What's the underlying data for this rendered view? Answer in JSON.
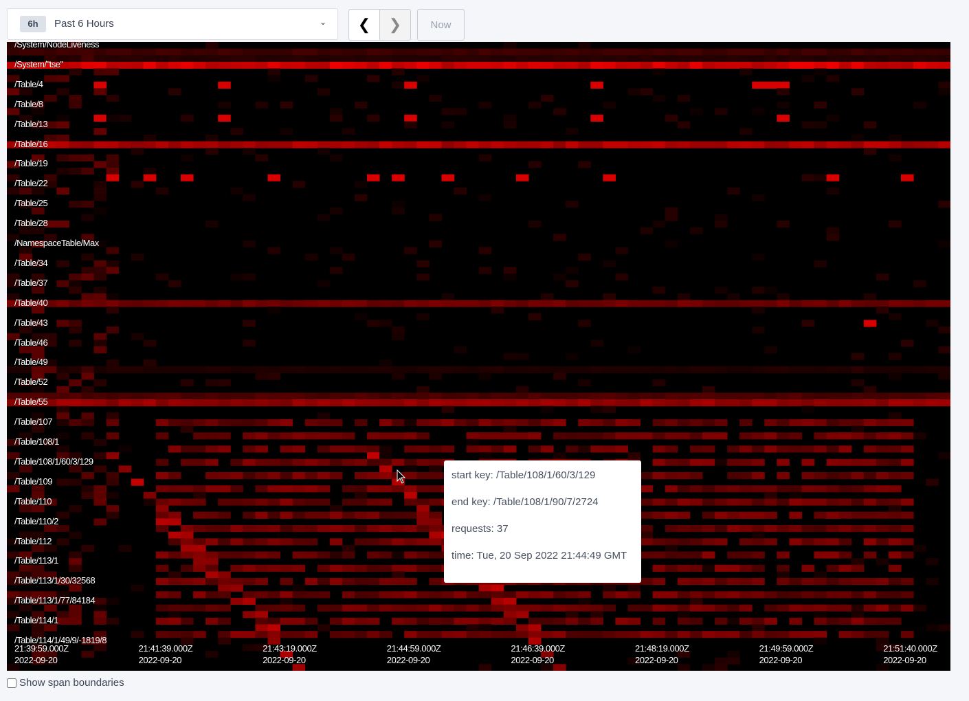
{
  "time_range": {
    "badge": "6h",
    "label": "Past 6 Hours"
  },
  "nav": {
    "prev_icon": "chevron-left-icon",
    "next_icon": "chevron-right-icon",
    "now_label": "Now"
  },
  "heatmap": {
    "color": "#ff0000",
    "y_labels": [
      "/System/NodeLiveness",
      "/System/\"tse\"",
      "/Table/4",
      "/Table/8",
      "/Table/13",
      "/Table/16",
      "/Table/19",
      "/Table/22",
      "/Table/25",
      "/Table/28",
      "/NamespaceTable/Max",
      "/Table/34",
      "/Table/37",
      "/Table/40",
      "/Table/43",
      "/Table/46",
      "/Table/49",
      "/Table/52",
      "/Table/55",
      "/Table/107",
      "/Table/108/1",
      "/Table/108/1/60/3/129",
      "/Table/109",
      "/Table/110",
      "/Table/110/2",
      "/Table/112",
      "/Table/113/1",
      "/Table/113/1/30/32568",
      "/Table/113/1/77/84184",
      "/Table/114/1",
      "/Table/114/1/49/9/-1819/8"
    ],
    "x_labels": [
      {
        "time": "21:39:59.000Z",
        "date": "2022-09-20"
      },
      {
        "time": "21:41:39.000Z",
        "date": "2022-09-20"
      },
      {
        "time": "21:43:19.000Z",
        "date": "2022-09-20"
      },
      {
        "time": "21:44:59.000Z",
        "date": "2022-09-20"
      },
      {
        "time": "21:46:39.000Z",
        "date": "2022-09-20"
      },
      {
        "time": "21:48:19.000Z",
        "date": "2022-09-20"
      },
      {
        "time": "21:49:59.000Z",
        "date": "2022-09-20"
      },
      {
        "time": "21:51:40.000Z",
        "date": "2022-09-20"
      }
    ],
    "bands": [
      {
        "row": 1,
        "level": 0.25,
        "from": 0,
        "to": 76
      },
      {
        "row": 2,
        "level": 0.15,
        "from": 4,
        "to": 76
      },
      {
        "row": 3,
        "level": 0.85,
        "from": 0,
        "to": 76
      },
      {
        "row": 15,
        "level": 0.7,
        "from": 0,
        "to": 76
      },
      {
        "row": 39,
        "level": 0.45,
        "from": 0,
        "to": 76
      },
      {
        "row": 49,
        "level": 0.12,
        "from": 0,
        "to": 76
      },
      {
        "row": 53,
        "level": 0.3,
        "from": 0,
        "to": 76
      },
      {
        "row": 54,
        "level": 0.6,
        "from": 0,
        "to": 76
      }
    ],
    "lower_section": {
      "from_row": 57,
      "to_row": 90,
      "from_col": 12,
      "to_col": 72,
      "level": 0.45
    },
    "hot_cells": [
      [
        6,
        7
      ],
      [
        6,
        17
      ],
      [
        6,
        32
      ],
      [
        6,
        47
      ],
      [
        6,
        62
      ],
      [
        6,
        60
      ],
      [
        6,
        61
      ],
      [
        11,
        7
      ],
      [
        11,
        17
      ],
      [
        11,
        32
      ],
      [
        11,
        47
      ],
      [
        11,
        62
      ],
      [
        20,
        8
      ],
      [
        20,
        11
      ],
      [
        20,
        14
      ],
      [
        20,
        21
      ],
      [
        20,
        29
      ],
      [
        20,
        31
      ],
      [
        20,
        35
      ],
      [
        20,
        41
      ],
      [
        20,
        48
      ],
      [
        20,
        66
      ],
      [
        20,
        72
      ],
      [
        42,
        69
      ]
    ]
  },
  "tooltip": {
    "start_key": "start key: /Table/108/1/60/3/129",
    "end_key": "end key: /Table/108/1/90/7/2724",
    "requests": "requests: 37",
    "time": "time: Tue, 20 Sep 2022 21:44:49 GMT"
  },
  "footer": {
    "show_span_boundaries": "Show span boundaries",
    "checked": false
  }
}
